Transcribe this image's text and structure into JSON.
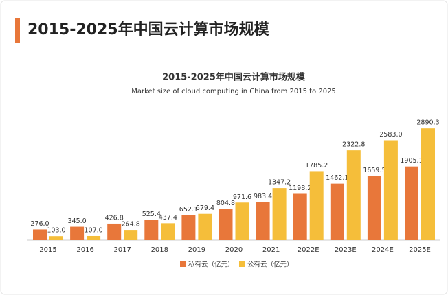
{
  "header": {
    "title": "2015-2025年中国云计算市场规模"
  },
  "chart_data": {
    "type": "bar",
    "title": "2015-2025年中国云计算市场规模",
    "subtitle": "Market size of cloud computing in China from 2015 to 2025",
    "categories": [
      "2015",
      "2016",
      "2017",
      "2018",
      "2019",
      "2020",
      "2021",
      "2022E",
      "2023E",
      "2024E",
      "2025E"
    ],
    "series": [
      {
        "name": "私有云（亿元）",
        "color": "#e8773a",
        "values": [
          276.0,
          345.0,
          426.8,
          525.4,
          652.1,
          804.8,
          983.4,
          1198.2,
          1462.1,
          1659.5,
          1905.1
        ],
        "value_labels": [
          "276.0",
          "345.0",
          "426.8",
          "525.4",
          "652.1",
          "804.8",
          "983.4",
          "1198.2",
          "1462.1",
          "1659.5",
          "1905.1"
        ]
      },
      {
        "name": "公有云（亿元）",
        "color": "#f5be3a",
        "values": [
          103.0,
          107.0,
          264.8,
          437.4,
          679.4,
          971.6,
          1347.2,
          1785.2,
          2322.8,
          2583.0,
          2890.3
        ],
        "value_labels": [
          "103.0",
          "107.0",
          "264.8",
          "437.4",
          "679.4",
          "971.6",
          "1347.2",
          "1785.2",
          "2322.8",
          "2583.0",
          "2890.3"
        ]
      }
    ],
    "ylim": [
      0,
      3000
    ],
    "grid": false,
    "legend": "bottom"
  }
}
